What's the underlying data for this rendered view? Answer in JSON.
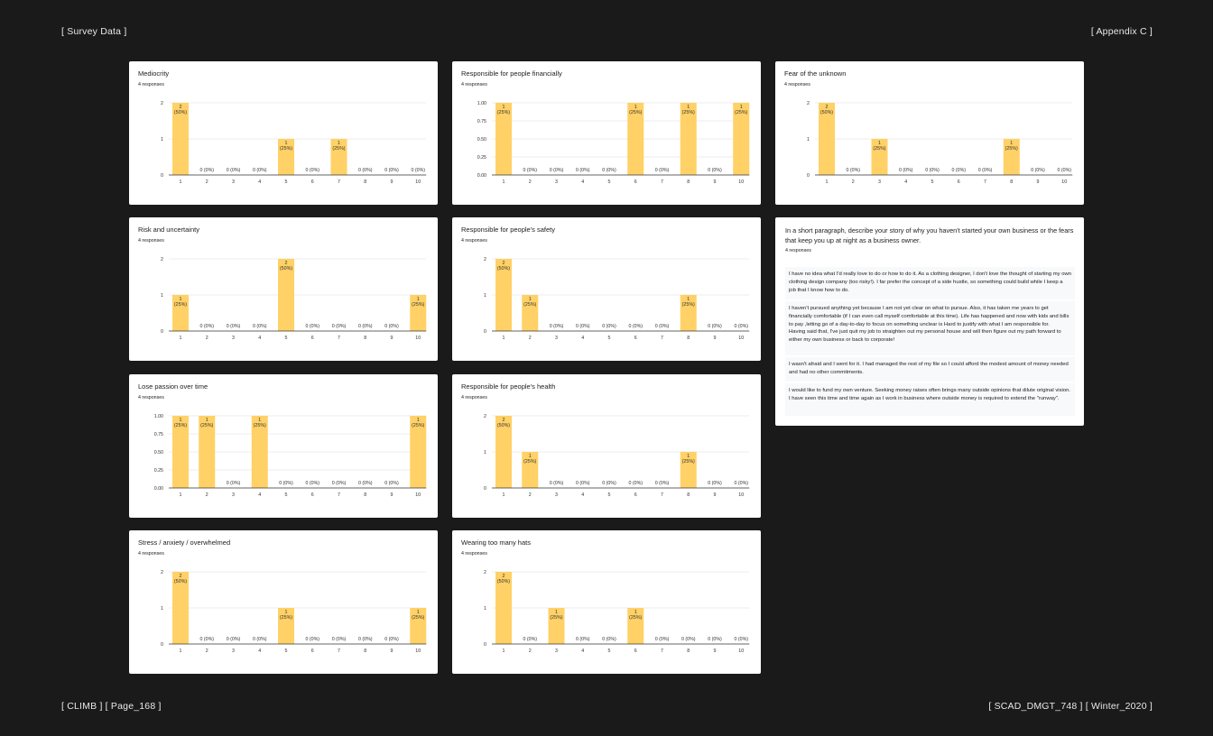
{
  "header": {
    "left": "[ Survey Data ]",
    "right": "[ Appendix C ]"
  },
  "footer": {
    "left": "[ CLIMB ] [ Page_168 ]",
    "right": "[ SCAD_DMGT_748 ] [ Winter_2020 ]"
  },
  "colors": {
    "bar": "#ffd166",
    "background": "#1a1a1a",
    "card": "#ffffff"
  },
  "chart_data": [
    {
      "type": "bar",
      "title": "Mediocrity",
      "subtitle": "4 responses",
      "categories": [
        "1",
        "2",
        "3",
        "4",
        "5",
        "6",
        "7",
        "8",
        "9",
        "10"
      ],
      "values": [
        2,
        0,
        0,
        0,
        1,
        0,
        1,
        0,
        0,
        0
      ],
      "labels": [
        "2\n(50%)",
        "0 (0%)",
        "0 (0%)",
        "0 (0%)",
        "1\n(25%)",
        "0 (0%)",
        "1\n(25%)",
        "0 (0%)",
        "0 (0%)",
        "0 (0%)"
      ],
      "yticks": [
        "0",
        "1",
        "2"
      ],
      "ylim": [
        0,
        2
      ]
    },
    {
      "type": "bar",
      "title": "Responsible for people financially",
      "subtitle": "4 responses",
      "categories": [
        "1",
        "2",
        "3",
        "4",
        "5",
        "6",
        "7",
        "8",
        "9",
        "10"
      ],
      "values": [
        1,
        0,
        0,
        0,
        0,
        1,
        0,
        1,
        0,
        1
      ],
      "labels": [
        "1\n(25%)",
        "0 (0%)",
        "0 (0%)",
        "0 (0%)",
        "0 (0%)",
        "1\n(25%)",
        "0 (0%)",
        "1\n(25%)",
        "0 (0%)",
        "1\n(25%)"
      ],
      "yticks": [
        "0.00",
        "0.25",
        "0.50",
        "0.75",
        "1.00"
      ],
      "ylim": [
        0,
        1
      ]
    },
    {
      "type": "bar",
      "title": "Fear of the unknown",
      "subtitle": "4 responses",
      "categories": [
        "1",
        "2",
        "3",
        "4",
        "5",
        "6",
        "7",
        "8",
        "9",
        "10"
      ],
      "values": [
        2,
        0,
        1,
        0,
        0,
        0,
        0,
        1,
        0,
        0
      ],
      "labels": [
        "2\n(50%)",
        "0 (0%)",
        "1\n(25%)",
        "0 (0%)",
        "0 (0%)",
        "0 (0%)",
        "0 (0%)",
        "1\n(25%)",
        "0 (0%)",
        "0 (0%)"
      ],
      "yticks": [
        "0",
        "1",
        "2"
      ],
      "ylim": [
        0,
        2
      ]
    },
    {
      "type": "bar",
      "title": "Risk and uncertainty",
      "subtitle": "4 responses",
      "categories": [
        "1",
        "2",
        "3",
        "4",
        "5",
        "6",
        "7",
        "8",
        "9",
        "10"
      ],
      "values": [
        1,
        0,
        0,
        0,
        2,
        0,
        0,
        0,
        0,
        1
      ],
      "labels": [
        "1\n(25%)",
        "0 (0%)",
        "0 (0%)",
        "0 (0%)",
        "2\n(50%)",
        "0 (0%)",
        "0 (0%)",
        "0 (0%)",
        "0 (0%)",
        "1\n(25%)"
      ],
      "yticks": [
        "0",
        "1",
        "2"
      ],
      "ylim": [
        0,
        2
      ]
    },
    {
      "type": "bar",
      "title": "Responsible for people's safety",
      "subtitle": "4 responses",
      "categories": [
        "1",
        "2",
        "3",
        "4",
        "5",
        "6",
        "7",
        "8",
        "9",
        "10"
      ],
      "values": [
        2,
        1,
        0,
        0,
        0,
        0,
        0,
        1,
        0,
        0
      ],
      "labels": [
        "2\n(50%)",
        "1\n(25%)",
        "0 (0%)",
        "0 (0%)",
        "0 (0%)",
        "0 (0%)",
        "0 (0%)",
        "1\n(25%)",
        "0 (0%)",
        "0 (0%)"
      ],
      "yticks": [
        "0",
        "1",
        "2"
      ],
      "ylim": [
        0,
        2
      ]
    },
    {
      "type": "bar",
      "title": "Lose passion over time",
      "subtitle": "4 responses",
      "categories": [
        "1",
        "2",
        "3",
        "4",
        "5",
        "6",
        "7",
        "8",
        "9",
        "10"
      ],
      "values": [
        1,
        1,
        0,
        1,
        0,
        0,
        0,
        0,
        0,
        1
      ],
      "labels": [
        "1\n(25%)",
        "1\n(25%)",
        "0 (0%)",
        "1\n(25%)",
        "0 (0%)",
        "0 (0%)",
        "0 (0%)",
        "0 (0%)",
        "0 (0%)",
        "1\n(25%)"
      ],
      "yticks": [
        "0.00",
        "0.25",
        "0.50",
        "0.75",
        "1.00"
      ],
      "ylim": [
        0,
        1
      ]
    },
    {
      "type": "bar",
      "title": "Responsible for people's health",
      "subtitle": "4 responses",
      "categories": [
        "1",
        "2",
        "3",
        "4",
        "5",
        "6",
        "7",
        "8",
        "9",
        "10"
      ],
      "values": [
        2,
        1,
        0,
        0,
        0,
        0,
        0,
        1,
        0,
        0
      ],
      "labels": [
        "2\n(50%)",
        "1\n(25%)",
        "0 (0%)",
        "0 (0%)",
        "0 (0%)",
        "0 (0%)",
        "0 (0%)",
        "1\n(25%)",
        "0 (0%)",
        "0 (0%)"
      ],
      "yticks": [
        "0",
        "1",
        "2"
      ],
      "ylim": [
        0,
        2
      ]
    },
    {
      "type": "bar",
      "title": "Stress / anxiety / overwhelmed",
      "subtitle": "4 responses",
      "categories": [
        "1",
        "2",
        "3",
        "4",
        "5",
        "6",
        "7",
        "8",
        "9",
        "10"
      ],
      "values": [
        2,
        0,
        0,
        0,
        1,
        0,
        0,
        0,
        0,
        1
      ],
      "labels": [
        "2\n(50%)",
        "0 (0%)",
        "0 (0%)",
        "0 (0%)",
        "1\n(25%)",
        "0 (0%)",
        "0 (0%)",
        "0 (0%)",
        "0 (0%)",
        "1\n(25%)"
      ],
      "yticks": [
        "0",
        "1",
        "2"
      ],
      "ylim": [
        0,
        2
      ]
    },
    {
      "type": "bar",
      "title": "Wearing too many hats",
      "subtitle": "4 responses",
      "categories": [
        "1",
        "2",
        "3",
        "4",
        "5",
        "6",
        "7",
        "8",
        "9",
        "10"
      ],
      "values": [
        2,
        0,
        1,
        0,
        0,
        1,
        0,
        0,
        0,
        0
      ],
      "labels": [
        "2\n(50%)",
        "0 (0%)",
        "1\n(25%)",
        "0 (0%)",
        "0 (0%)",
        "1\n(25%)",
        "0 (0%)",
        "0 (0%)",
        "0 (0%)",
        "0 (0%)"
      ],
      "yticks": [
        "0",
        "1",
        "2"
      ],
      "ylim": [
        0,
        2
      ]
    }
  ],
  "question": {
    "title": "In a short paragraph, describe your story of why you haven't started your own business or the fears that keep you up at night as a business owner.",
    "subtitle": "4 responses",
    "responses": [
      "I have no idea what I'd really love to do or how to do it. As a clothing designer, I don't love the thought of starting my own clothing design company (too risky!). I far prefer the concept of a side hustle, so something could build while I keep a job that I know how to do.",
      "I haven't pursued anything yet because I am not yet clear on what to pursue. Also, it has taken me years to get financially comfortable (if I can even call myself comfortable at this time). Life has happened and now with kids and bills to pay ,letting go of a day-to-day to focus on something unclear is Hard to justify with what I am responsible for.\nHaving said that, I've just quit my job to straighten out my personal house and will then figure out my path forward to either my own business or back to corporate!",
      "I wasn't afraid and I went for it. I had managed the rest of my file so I could afford the modest amount of money needed and had no other commitments.",
      "I would like to fund my own venture. Seeking money raises often brings many outside opinions that dilute original vision. I have seen this time and time again as I work in business where outside money is required to extend the \"runway\"."
    ]
  }
}
